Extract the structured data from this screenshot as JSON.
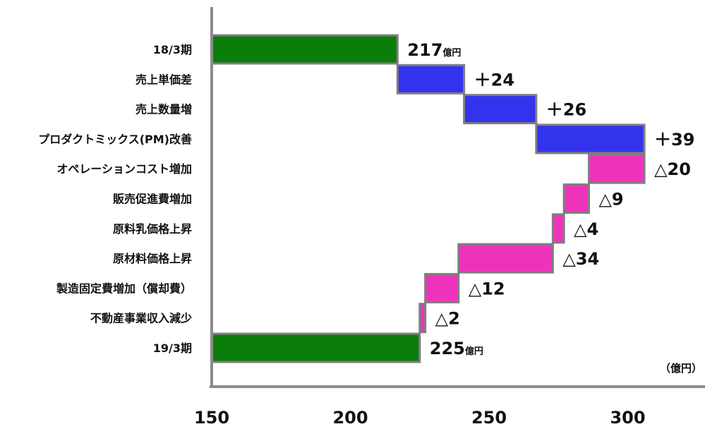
{
  "chart_data": {
    "type": "bar",
    "orientation": "horizontal-waterfall",
    "unit_label": "（億円）",
    "xlim": [
      150,
      320
    ],
    "xticks": [
      150,
      200,
      250,
      300
    ],
    "grid": false,
    "colors": {
      "total": "#0a7d0a",
      "increase": "#3333ee",
      "decrease": "#ee33bb",
      "edge": "#7f7f7f",
      "axis": "#8c8c8c"
    },
    "items": [
      {
        "category": "18/3期",
        "kind": "total",
        "start": 150,
        "end": 217,
        "label": "217",
        "unit": "億円"
      },
      {
        "category": "売上単価差",
        "kind": "increase",
        "start": 217,
        "end": 241,
        "label": "＋24"
      },
      {
        "category": "売上数量増",
        "kind": "increase",
        "start": 241,
        "end": 267,
        "label": "＋26"
      },
      {
        "category": "プロダクトミックス(PM)改善",
        "kind": "increase",
        "start": 267,
        "end": 306,
        "label": "＋39"
      },
      {
        "category": "オペレーションコスト増加",
        "kind": "decrease",
        "start": 306,
        "end": 286,
        "label": "△20"
      },
      {
        "category": "販売促進費増加",
        "kind": "decrease",
        "start": 286,
        "end": 277,
        "label": "△9"
      },
      {
        "category": "原料乳価格上昇",
        "kind": "decrease",
        "start": 277,
        "end": 273,
        "label": "△4"
      },
      {
        "category": "原材料価格上昇",
        "kind": "decrease",
        "start": 273,
        "end": 239,
        "label": "△34"
      },
      {
        "category": "製造固定費増加（償却費）",
        "kind": "decrease",
        "start": 239,
        "end": 227,
        "label": "△12"
      },
      {
        "category": "不動産事業収入減少",
        "kind": "decrease",
        "start": 227,
        "end": 225,
        "label": "△2"
      },
      {
        "category": "19/3期",
        "kind": "total",
        "start": 150,
        "end": 225,
        "label": "225",
        "unit": "億円"
      }
    ]
  }
}
